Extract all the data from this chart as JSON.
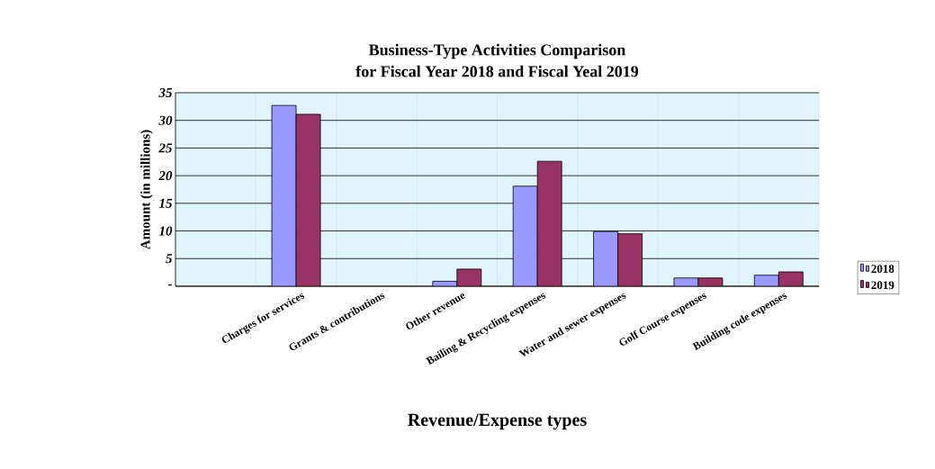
{
  "chart_data": {
    "type": "bar",
    "title": "Business-Type Activities Comparison",
    "subtitle": "for Fiscal Year 2018 and Fiscal Yeal 2019",
    "xlabel": "Revenue/Expense types",
    "ylabel": "Amount (in millions)",
    "categories": [
      null,
      "Charges for services",
      "Grants & contributions",
      "Other revenue",
      "Bailing & Recycling expenses",
      "Water and sewer expenses",
      "Golf Course expenses",
      "Building code expenses"
    ],
    "series": [
      {
        "name": "2018",
        "color": "#9999ff",
        "values": [
          null,
          32.7,
          null,
          0.9,
          18.1,
          9.9,
          1.5,
          2.0
        ]
      },
      {
        "name": "2019",
        "color": "#993366",
        "values": [
          null,
          31.1,
          null,
          3.1,
          22.6,
          9.5,
          1.5,
          2.6
        ]
      }
    ],
    "ylim": [
      0,
      35
    ],
    "yticks": [
      {
        "value": 0,
        "label": "-"
      },
      5,
      10,
      15,
      20,
      25,
      30,
      35
    ],
    "grid": true,
    "legend": "right"
  }
}
